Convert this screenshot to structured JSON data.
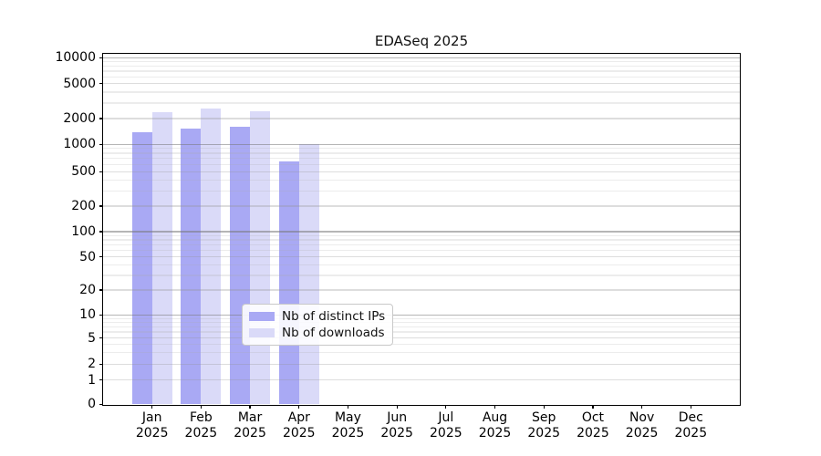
{
  "chart_data": {
    "type": "bar",
    "title": "EDASeq 2025",
    "categories": [
      "Jan",
      "Feb",
      "Mar",
      "Apr",
      "May",
      "Jun",
      "Jul",
      "Aug",
      "Sep",
      "Oct",
      "Nov",
      "Dec"
    ],
    "year_label": "2025",
    "series": [
      {
        "name": "Nb of distinct IPs",
        "color": "#a9a9f4",
        "values": [
          1400,
          1540,
          1600,
          650,
          null,
          null,
          null,
          null,
          null,
          null,
          null,
          null
        ]
      },
      {
        "name": "Nb of downloads",
        "color": "#dadaf8",
        "values": [
          2350,
          2600,
          2430,
          1000,
          null,
          null,
          null,
          null,
          null,
          null,
          null,
          null
        ]
      }
    ],
    "yticks": [
      0,
      1,
      2,
      5,
      10,
      20,
      50,
      100,
      200,
      500,
      1000,
      2000,
      5000,
      10000
    ],
    "ylim": [
      0,
      10000
    ],
    "yscale": "log above 1, linear 0-1 (symlog)",
    "xlabel": "",
    "ylabel": "",
    "grid": "major and minor horizontal gridlines, drawn over bars",
    "legend_position": "lower center, inside axes",
    "colors": {
      "axis": "#000000",
      "grid_major": "#b8b8b8",
      "grid_minor": "#ececec",
      "background": "#ffffff"
    }
  }
}
